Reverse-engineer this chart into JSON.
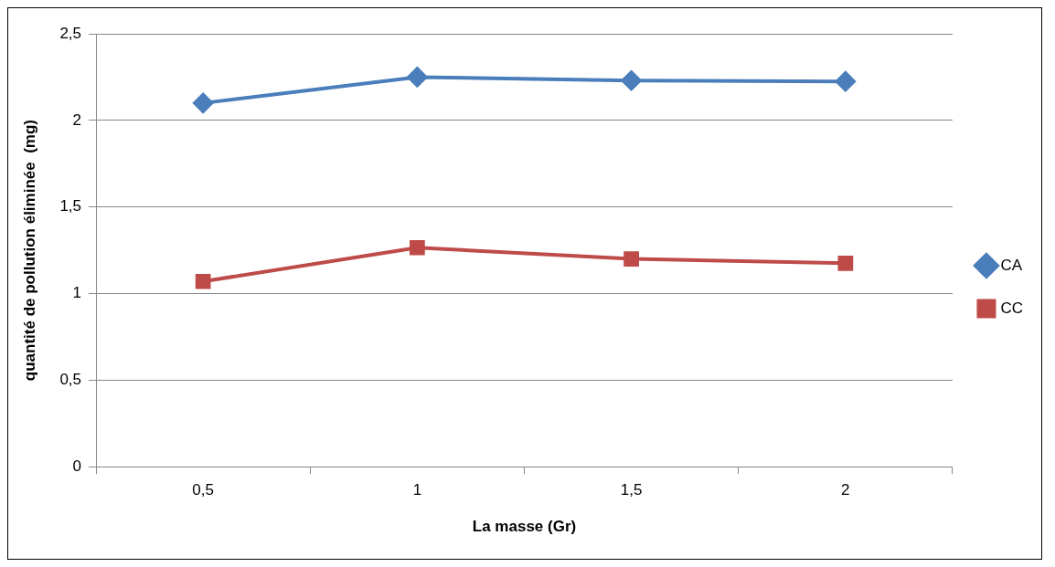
{
  "chart_data": {
    "type": "line",
    "xlabel": "La masse (Gr)",
    "ylabel": "quantité de pollution éliminée  (mg)",
    "categories": [
      "0,5",
      "1",
      "1,5",
      "2"
    ],
    "series": [
      {
        "name": "CA",
        "color": "#4a7ebb",
        "marker": "diamond",
        "values": [
          2.1,
          2.25,
          2.23,
          2.225
        ]
      },
      {
        "name": "CC",
        "color": "#be4b48",
        "marker": "square",
        "values": [
          1.07,
          1.265,
          1.2,
          1.175
        ]
      }
    ],
    "ylim": [
      0,
      2.5
    ],
    "yticks": [
      0,
      {
        "value": 0.5,
        "label": "0,5"
      },
      1,
      {
        "value": 1.5,
        "label": "1,5"
      },
      2,
      {
        "value": 2.5,
        "label": "2,5"
      }
    ],
    "grid": "y",
    "legend": "right"
  }
}
